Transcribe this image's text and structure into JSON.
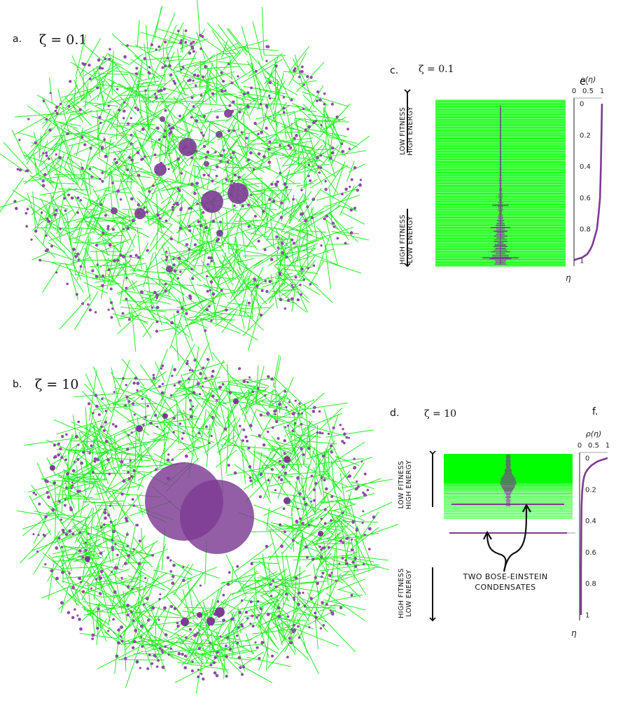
{
  "panels": {
    "a": {
      "letter": "a.",
      "zeta_label": "ζ = 0.1"
    },
    "b": {
      "letter": "b.",
      "zeta_label": "ζ = 10"
    },
    "c": {
      "letter": "c.",
      "zeta_label": "ζ = 0.1"
    },
    "d": {
      "letter": "d.",
      "zeta_label": "ζ = 10"
    },
    "e": {
      "letter": "e."
    },
    "f": {
      "letter": "f."
    }
  },
  "labels": {
    "low_fitness": "LOW FITNESS",
    "high_energy": "HIGH ENERGY",
    "high_fitness": "HIGH FITNESS",
    "low_energy": "LOW ENERGY",
    "condensates_line1": "TWO BOSE-EINSTEIN",
    "condensates_line2": "CONDENSATES"
  },
  "colors": {
    "edge": "#22ee22",
    "node": "#7d3a93",
    "node_light": "#8f4aa6",
    "green_fill": "#00ff00",
    "axis": "#222222"
  },
  "chart_data": [
    {
      "panel": "e",
      "type": "line",
      "xlabel": "ρ(η)",
      "ylabel": "η",
      "x_ticks": [
        "0",
        "0.5",
        "1"
      ],
      "y_ticks": [
        "0",
        "0.2",
        "0.4",
        "0.6",
        "0.8",
        "1"
      ],
      "xlim": [
        0,
        1
      ],
      "ylim": [
        0,
        1
      ],
      "y_inverted": true,
      "series": [
        {
          "x": [
            1.0,
            0.98,
            0.96,
            0.93,
            0.88,
            0.82,
            0.74,
            0.66,
            0.58,
            0.47,
            0.3,
            0.12,
            0.03,
            0.0
          ],
          "y": [
            0.0,
            0.2,
            0.4,
            0.6,
            0.7,
            0.8,
            0.85,
            0.9,
            0.93,
            0.96,
            0.98,
            0.99,
            0.995,
            1.0
          ]
        }
      ]
    },
    {
      "panel": "f",
      "type": "line",
      "xlabel": "ρ(η)",
      "ylabel": "η",
      "x_ticks": [
        "0",
        "0.5",
        "1"
      ],
      "y_ticks": [
        "0",
        "0.2",
        "0.4",
        "0.6",
        "0.8",
        "1"
      ],
      "xlim": [
        0,
        1
      ],
      "ylim": [
        0,
        1
      ],
      "y_inverted": true,
      "series": [
        {
          "x": [
            1.0,
            0.82,
            0.66,
            0.52,
            0.4,
            0.3,
            0.22,
            0.16,
            0.12,
            0.09,
            0.07,
            0.06,
            0.05,
            0.05
          ],
          "y": [
            0.0,
            0.01,
            0.02,
            0.035,
            0.05,
            0.07,
            0.09,
            0.12,
            0.16,
            0.22,
            0.3,
            0.45,
            0.7,
            1.0
          ]
        }
      ]
    }
  ]
}
